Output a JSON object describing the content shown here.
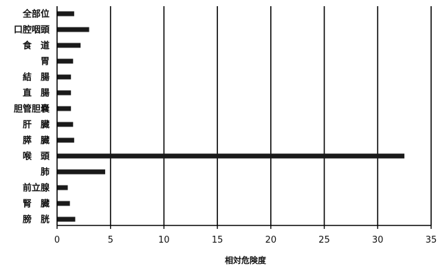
{
  "chart_data": {
    "type": "bar",
    "orientation": "horizontal",
    "categories": [
      "全部位",
      "口腔咽頭",
      "食　道",
      "胃",
      "結　腸",
      "直　腸",
      "胆管胆嚢",
      "肝　臓",
      "膵　臓",
      "喉　頭",
      "肺",
      "前立腺",
      "腎　臓",
      "膀　胱"
    ],
    "values": [
      1.6,
      3.0,
      2.2,
      1.5,
      1.3,
      1.3,
      1.3,
      1.5,
      1.6,
      32.5,
      4.5,
      1.0,
      1.2,
      1.7
    ],
    "xlabel": "相対危険度",
    "ylabel": "",
    "xlim": [
      0,
      35
    ],
    "xticks": [
      0,
      5,
      10,
      15,
      20,
      25,
      30,
      35
    ],
    "xtick_labels": [
      "0",
      "5",
      "10",
      "15",
      "20",
      "25",
      "30",
      "35"
    ],
    "grid": "vertical",
    "legend": "none",
    "bar_color": "#1a1a1a",
    "grid_color": "#000000"
  }
}
